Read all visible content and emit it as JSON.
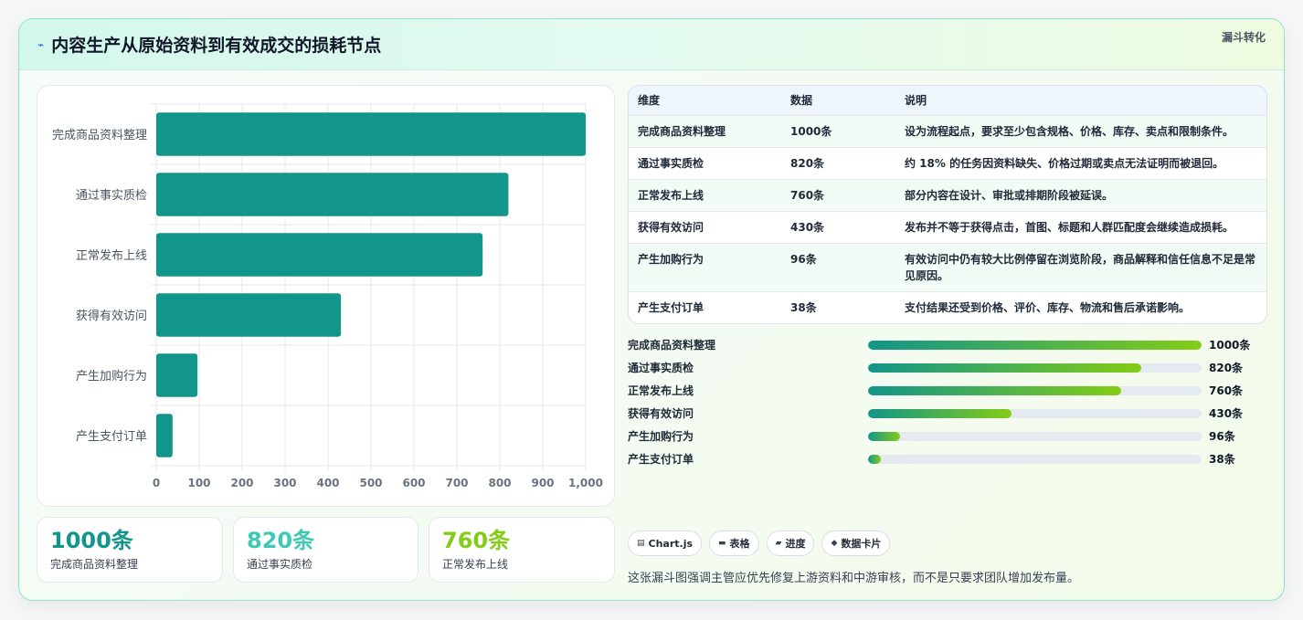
{
  "header": {
    "icon": "bolt-icon",
    "title": "内容生产从原始资料到有效成交的损耗节点",
    "tag": "漏斗转化"
  },
  "chart_data": {
    "type": "bar",
    "orientation": "horizontal",
    "categories": [
      "完成商品资料整理",
      "通过事实质检",
      "正常发布上线",
      "获得有效访问",
      "产生加购行为",
      "产生支付订单"
    ],
    "values": [
      1000,
      820,
      760,
      430,
      96,
      38
    ],
    "xlim": [
      0,
      1000
    ],
    "xticks": [
      "0",
      "100",
      "200",
      "300",
      "400",
      "500",
      "600",
      "700",
      "800",
      "900",
      "1,000"
    ],
    "bar_color": "#12958a",
    "grid": true
  },
  "kpis": [
    {
      "value": "1000条",
      "label": "完成商品资料整理",
      "color": "#12958a"
    },
    {
      "value": "820条",
      "label": "通过事实质检",
      "color": "#3ec9b5"
    },
    {
      "value": "760条",
      "label": "正常发布上线",
      "color": "#84cc16"
    }
  ],
  "table": {
    "headers": [
      "维度",
      "数据",
      "说明"
    ],
    "rows": [
      [
        "完成商品资料整理",
        "1000条",
        "设为流程起点，要求至少包含规格、价格、库存、卖点和限制条件。"
      ],
      [
        "通过事实质检",
        "820条",
        "约 18% 的任务因资料缺失、价格过期或卖点无法证明而被退回。"
      ],
      [
        "正常发布上线",
        "760条",
        "部分内容在设计、审批或排期阶段被延误。"
      ],
      [
        "获得有效访问",
        "430条",
        "发布并不等于获得点击，首图、标题和人群匹配度会继续造成损耗。"
      ],
      [
        "产生加购行为",
        "96条",
        "有效访问中仍有较大比例停留在浏览阶段，商品解释和信任信息不足是常见原因。"
      ],
      [
        "产生支付订单",
        "38条",
        "支付结果还受到价格、评价、库存、物流和售后承诺影响。"
      ]
    ]
  },
  "progress": [
    {
      "label": "完成商品资料整理",
      "value_text": "1000条",
      "fraction": 1.0
    },
    {
      "label": "通过事实质检",
      "value_text": "820条",
      "fraction": 0.82
    },
    {
      "label": "正常发布上线",
      "value_text": "760条",
      "fraction": 0.76
    },
    {
      "label": "获得有效访问",
      "value_text": "430条",
      "fraction": 0.43
    },
    {
      "label": "产生加购行为",
      "value_text": "96条",
      "fraction": 0.096
    },
    {
      "label": "产生支付订单",
      "value_text": "38条",
      "fraction": 0.038
    }
  ],
  "chips": [
    {
      "icon": "chart-icon",
      "glyph": "▤",
      "label": "Chart.js"
    },
    {
      "icon": "table-icon",
      "glyph": "▬",
      "label": "表格"
    },
    {
      "icon": "progress-icon",
      "glyph": "▰",
      "label": "进度"
    },
    {
      "icon": "card-icon",
      "glyph": "◆",
      "label": "数据卡片"
    }
  ],
  "note": "这张漏斗图强调主管应优先修复上游资料和中游审核，而不是只要求团队增加发布量。"
}
